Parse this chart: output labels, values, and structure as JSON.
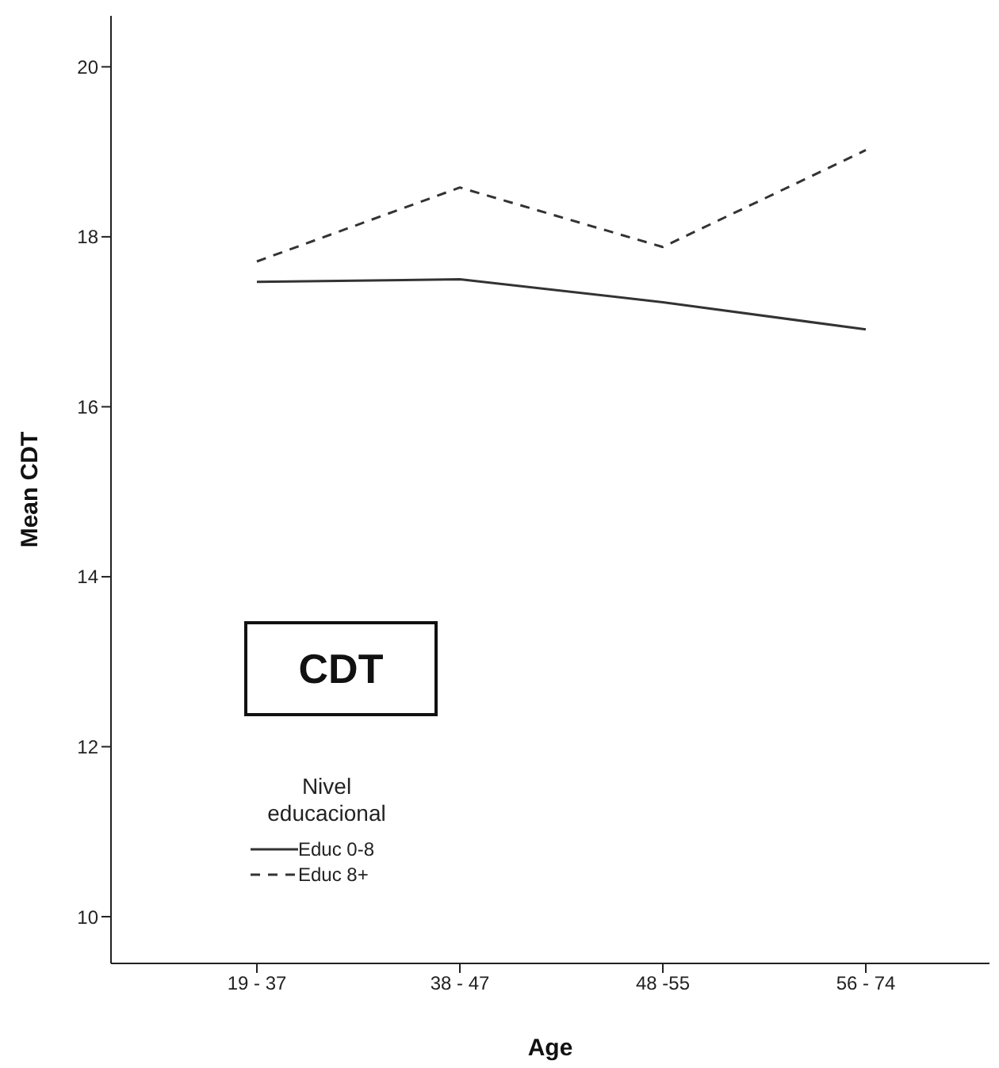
{
  "chart_data": {
    "type": "line",
    "xlabel": "Age",
    "ylabel": "Mean CDT",
    "categories": [
      "19 - 37",
      "38 - 47",
      "48 -55",
      "56 - 74"
    ],
    "series": [
      {
        "name": "Educ 0-8",
        "color": "#333333",
        "line_style": "solid",
        "values": [
          17.47,
          17.5,
          17.23,
          16.91
        ]
      },
      {
        "name": "Educ 8+",
        "color": "#333333",
        "line_style": "dashed",
        "values": [
          17.71,
          18.58,
          17.88,
          19.02
        ]
      }
    ],
    "ylim": [
      9.45,
      20.6
    ],
    "yticks": [
      10,
      12,
      14,
      16,
      18,
      20
    ],
    "grid": false,
    "legend": "bottom left",
    "legend_title": "Nivel educacional",
    "marker": "none",
    "annotations": [
      "CDT"
    ]
  }
}
